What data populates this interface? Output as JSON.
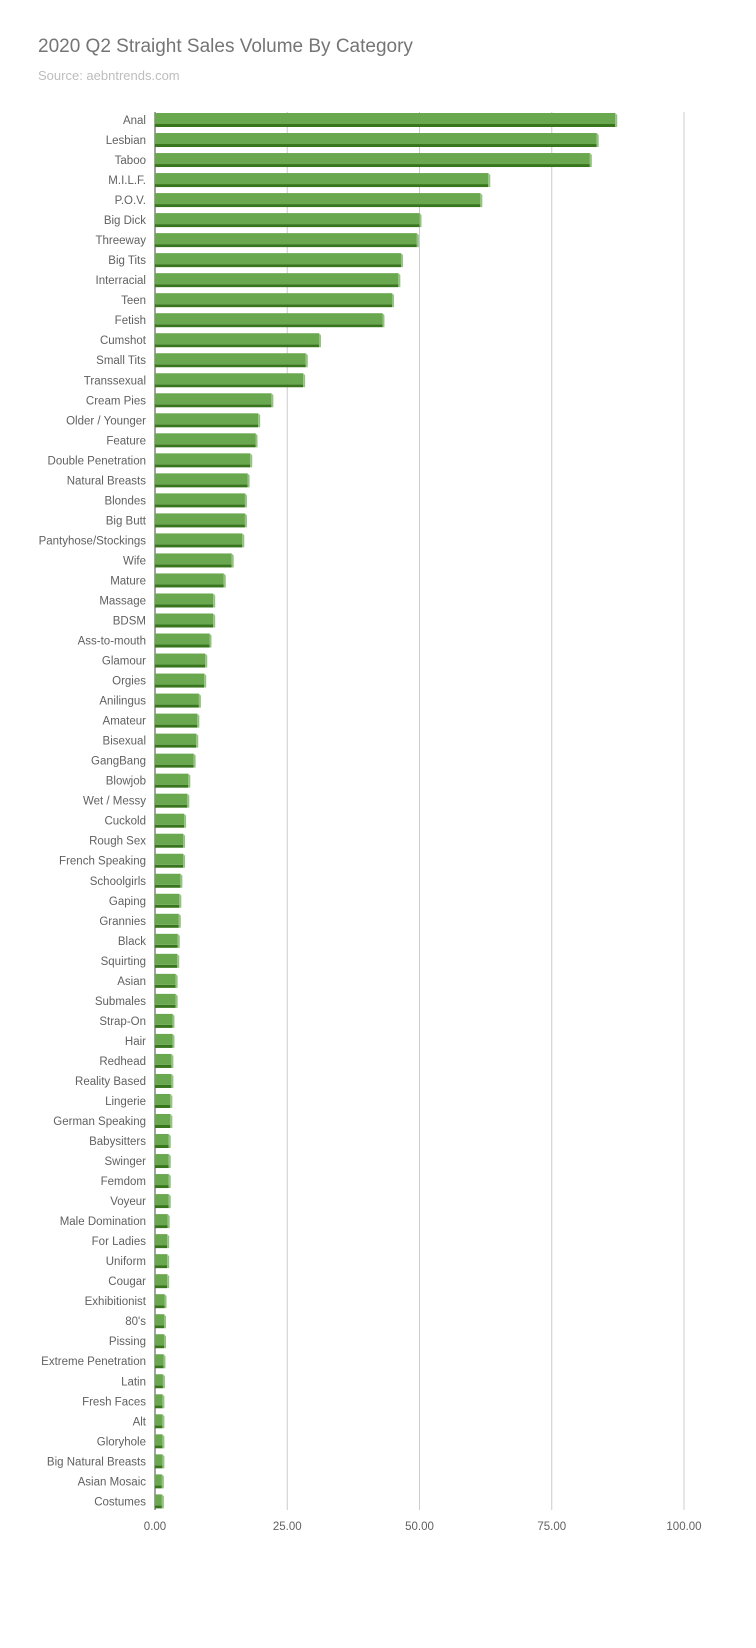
{
  "colors": {
    "bar_face": "#6aa84f",
    "bar_shadow": "#38761d",
    "bar_side": "#93c47d",
    "grid": "#cccccc",
    "axis": "#444444"
  },
  "chart_data": {
    "type": "bar",
    "orientation": "horizontal",
    "title": "2020 Q2 Straight Sales Volume By Category",
    "subtitle": "Source: aebntrends.com",
    "xlim": [
      0,
      100
    ],
    "xticks": [
      "0.00",
      "25.00",
      "50.00",
      "75.00",
      "100.00"
    ],
    "grid": true,
    "categories": [
      "Anal",
      "Lesbian",
      "Taboo",
      "M.I.L.F.",
      "P.O.V.",
      "Big Dick",
      "Threeway",
      "Big Tits",
      "Interracial",
      "Teen",
      "Fetish",
      "Cumshot",
      "Small Tits",
      "Transsexual",
      "Cream Pies",
      "Older / Younger",
      "Feature",
      "Double Penetration",
      "Natural Breasts",
      "Blondes",
      "Big Butt",
      "Pantyhose/Stockings",
      "Wife",
      "Mature",
      "Massage",
      "BDSM",
      "Ass-to-mouth",
      "Glamour",
      "Orgies",
      "Anilingus",
      "Amateur",
      "Bisexual",
      "GangBang",
      "Blowjob",
      "Wet / Messy",
      "Cuckold",
      "Rough Sex",
      "French Speaking",
      "Schoolgirls",
      "Gaping",
      "Grannies",
      "Black",
      "Squirting",
      "Asian",
      "Submales",
      "Strap-On",
      "Hair",
      "Redhead",
      "Reality Based",
      "Lingerie",
      "German Speaking",
      "Babysitters",
      "Swinger",
      "Femdom",
      "Voyeur",
      "Male Domination",
      "For Ladies",
      "Uniform",
      "Cougar",
      "Exhibitionist",
      "80's",
      "Pissing",
      "Extreme Penetration",
      "Latin",
      "Fresh Faces",
      "Alt",
      "Gloryhole",
      "Big Natural Breasts",
      "Asian Mosaic",
      "Costumes"
    ],
    "values": [
      87.0,
      83.5,
      82.2,
      63.0,
      61.5,
      50.0,
      49.5,
      46.5,
      46.0,
      44.8,
      43.0,
      31.0,
      28.5,
      28.0,
      22.0,
      19.5,
      19.0,
      18.0,
      17.5,
      17.0,
      17.0,
      16.5,
      14.5,
      13.0,
      11.0,
      11.0,
      10.3,
      9.5,
      9.3,
      8.3,
      8.0,
      7.8,
      7.3,
      6.3,
      6.1,
      5.5,
      5.3,
      5.3,
      4.8,
      4.6,
      4.5,
      4.3,
      4.2,
      3.9,
      3.9,
      3.3,
      3.3,
      3.1,
      3.1,
      2.9,
      2.9,
      2.6,
      2.6,
      2.6,
      2.6,
      2.4,
      2.3,
      2.3,
      2.3,
      1.8,
      1.7,
      1.7,
      1.6,
      1.5,
      1.4,
      1.4,
      1.4,
      1.4,
      1.3,
      1.3
    ]
  }
}
